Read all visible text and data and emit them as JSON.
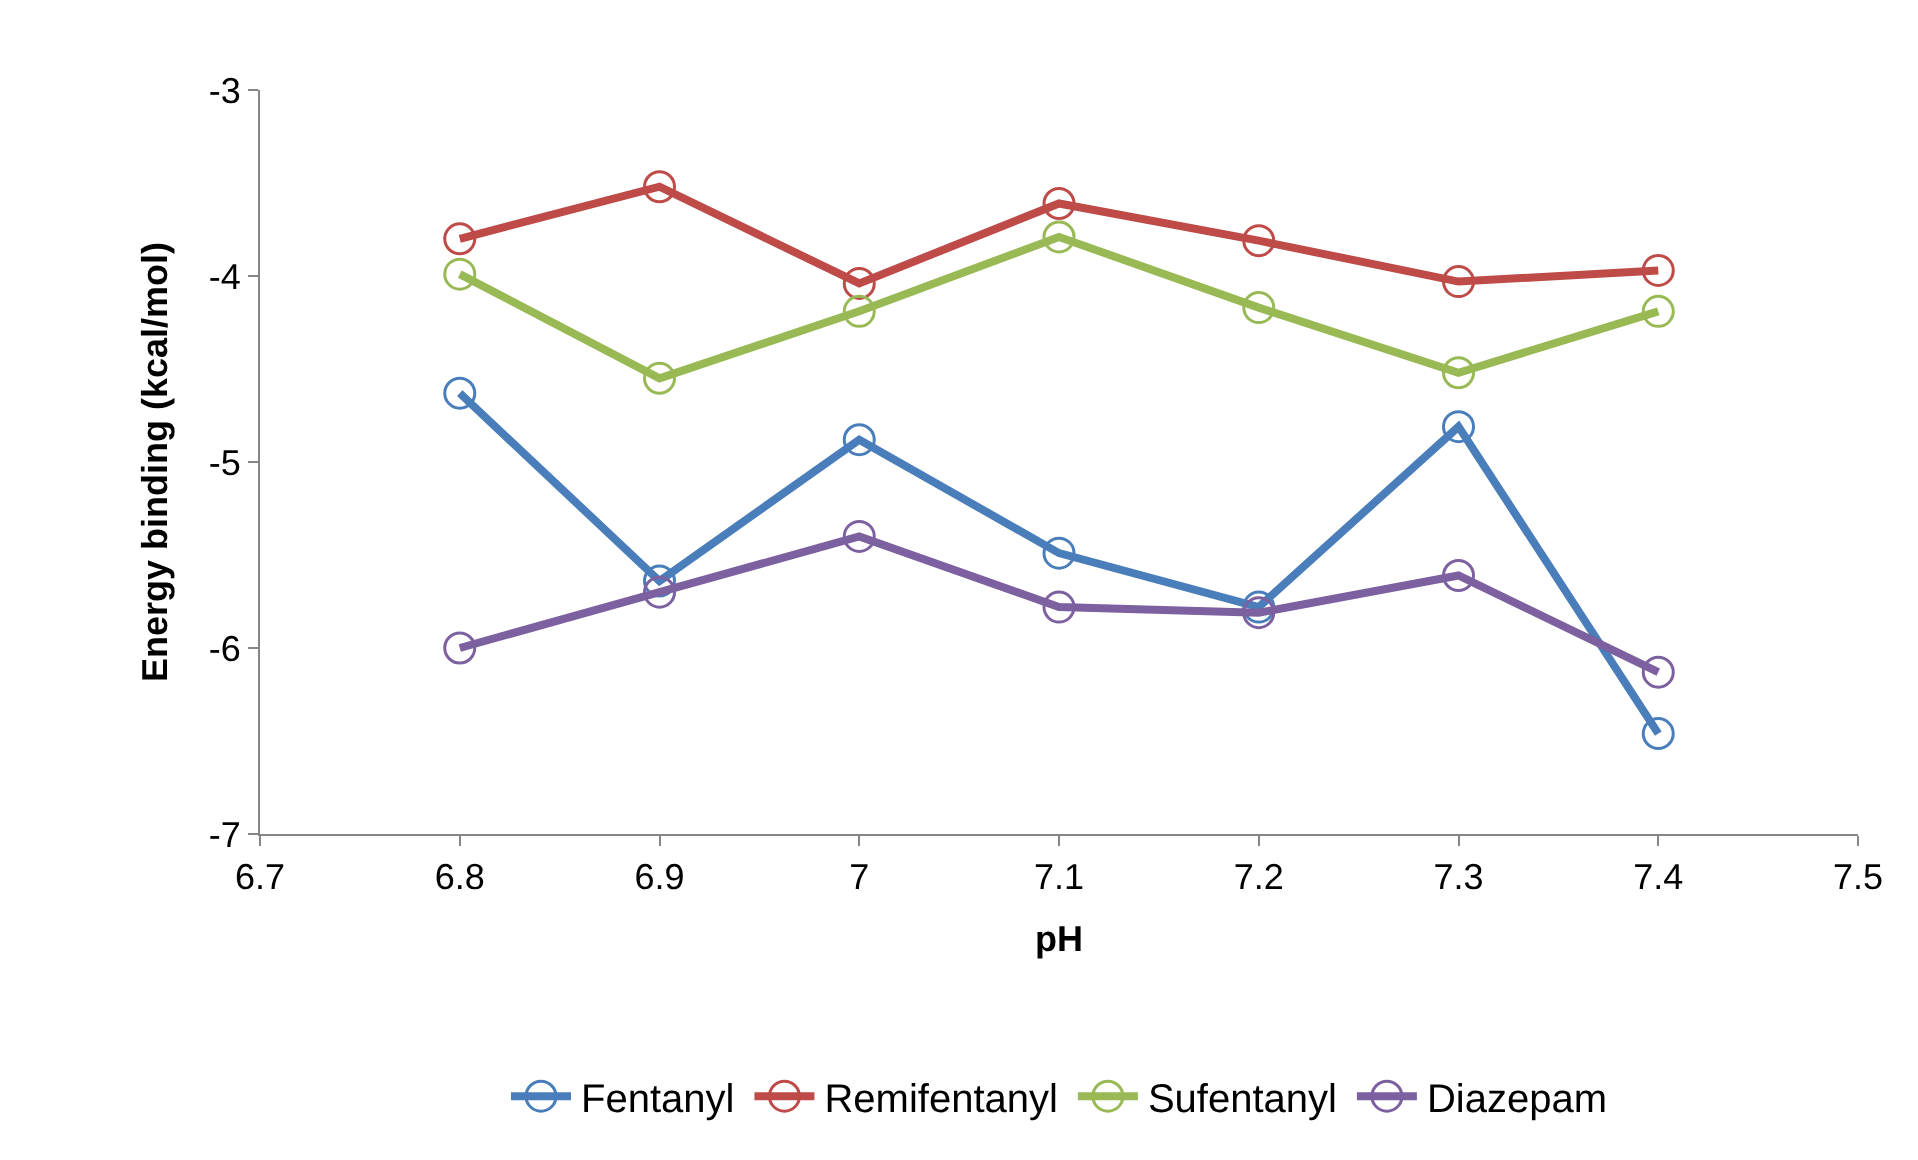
{
  "chart_data": {
    "type": "line",
    "xlabel": "pH",
    "ylabel": "Energy binding (kcal/mol)",
    "x": [
      6.8,
      6.9,
      7.0,
      7.1,
      7.2,
      7.3,
      7.4
    ],
    "xlim": [
      6.7,
      7.5
    ],
    "xticks": [
      6.7,
      6.8,
      6.9,
      7,
      7.1,
      7.2,
      7.3,
      7.4,
      7.5
    ],
    "ylim": [
      -7,
      -3
    ],
    "yticks": [
      -7,
      -6,
      -5,
      -4,
      -3
    ],
    "grid": false,
    "legend": "bottom",
    "marker": "circle",
    "line_style": "solid",
    "series": [
      {
        "name": "Fentanyl",
        "color": "#4a7ebb",
        "values": [
          -4.63,
          -5.64,
          -4.88,
          -5.49,
          -5.78,
          -4.81,
          -6.46
        ]
      },
      {
        "name": "Remifentanyl",
        "color": "#be4b48",
        "values": [
          -3.8,
          -3.52,
          -4.04,
          -3.61,
          -3.81,
          -4.03,
          -3.97
        ]
      },
      {
        "name": "Sufentanyl",
        "color": "#98b954",
        "values": [
          -3.99,
          -4.55,
          -4.19,
          -3.79,
          -4.17,
          -4.52,
          -4.19
        ]
      },
      {
        "name": "Diazepam",
        "color": "#7d60a0",
        "values": [
          -6.0,
          -5.7,
          -5.4,
          -5.78,
          -5.81,
          -5.61,
          -6.13
        ]
      }
    ]
  }
}
